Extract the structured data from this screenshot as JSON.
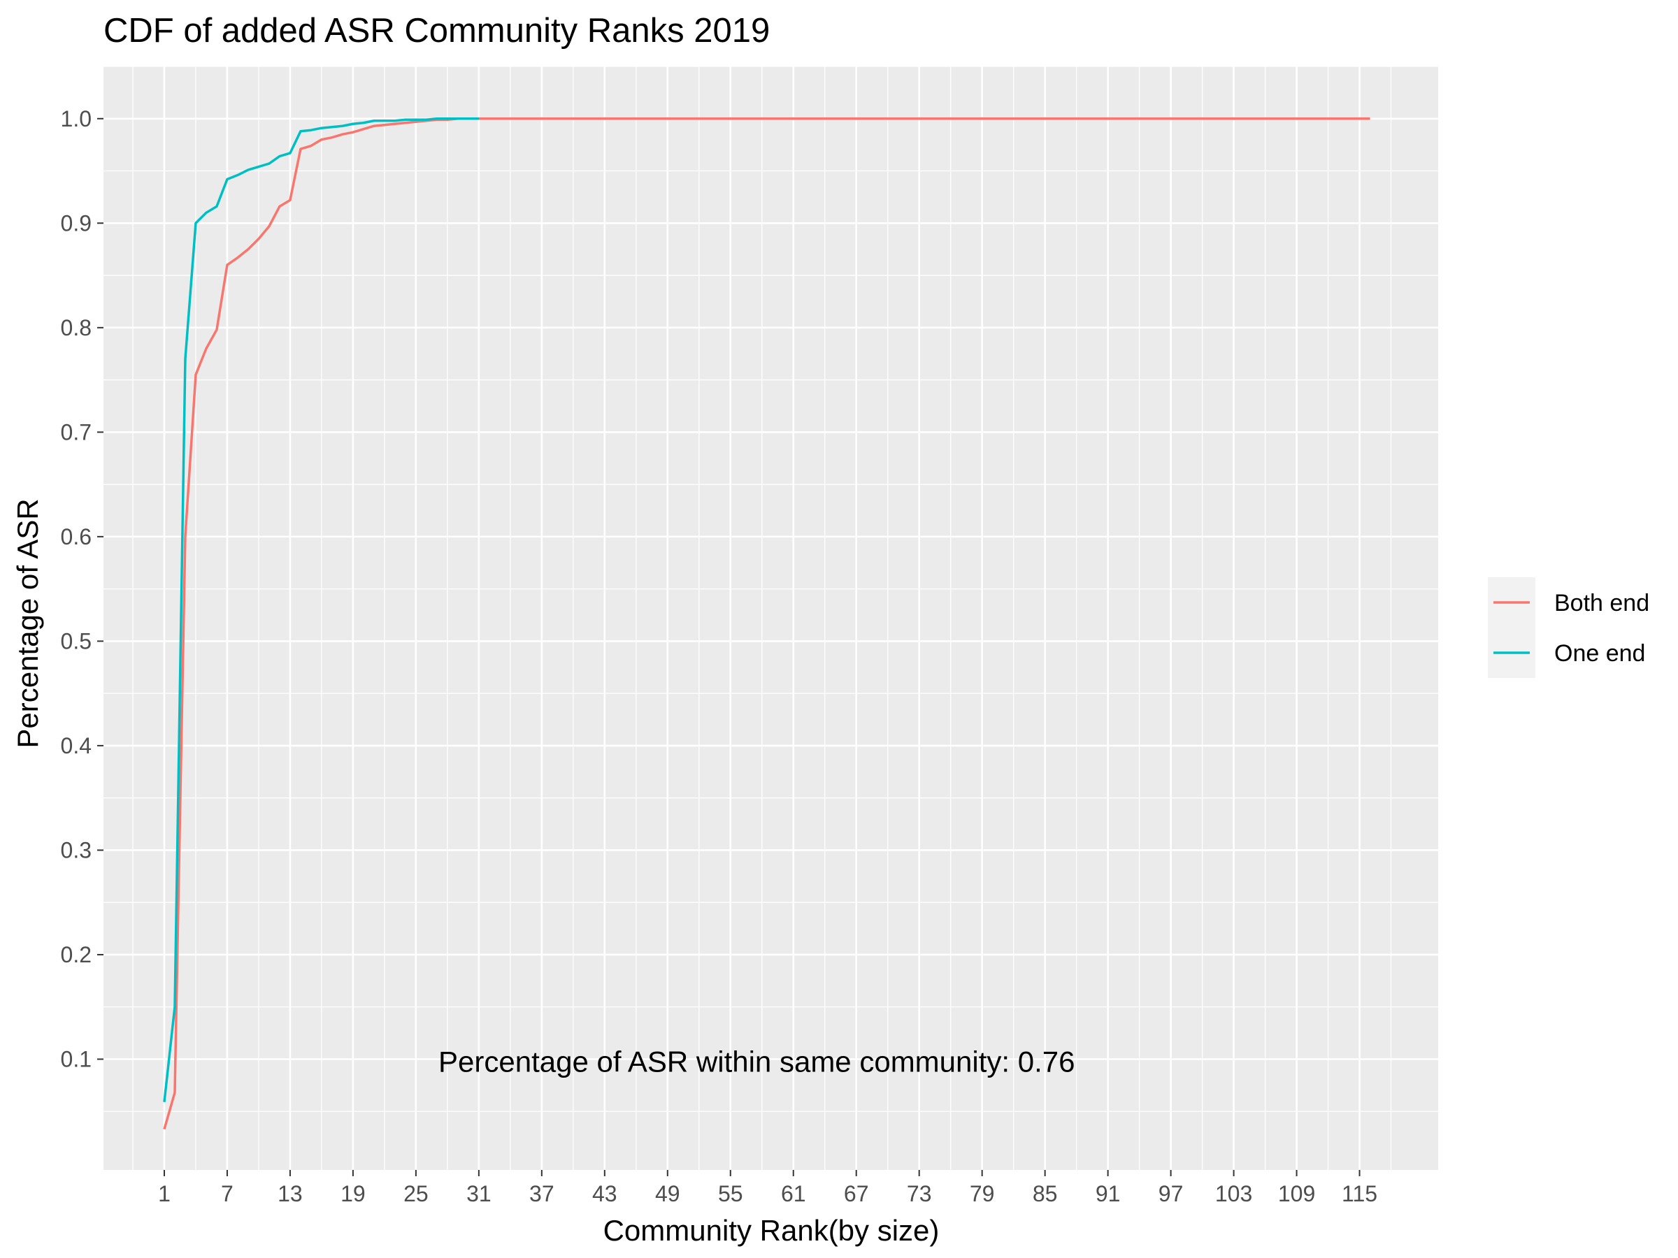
{
  "chart_data": {
    "type": "line",
    "title": "CDF of added ASR Community Ranks 2019",
    "xlabel": "Community Rank(by size)",
    "ylabel": "Percentage of ASR",
    "xlim": [
      -4.8,
      122.5
    ],
    "ylim": [
      -0.006,
      1.05
    ],
    "x_ticks": [
      1,
      7,
      13,
      19,
      25,
      31,
      37,
      43,
      49,
      55,
      61,
      67,
      73,
      79,
      85,
      91,
      97,
      103,
      109,
      115
    ],
    "y_ticks": [
      0.1,
      0.2,
      0.3,
      0.4,
      0.5,
      0.6,
      0.7,
      0.8,
      0.9,
      1.0
    ],
    "grid": true,
    "legend_position": "right",
    "annotation": "Percentage of ASR within same community: 0.76",
    "annotation_at": {
      "x": 57.5,
      "y": 0.088
    },
    "series": [
      {
        "name": "Both end",
        "color": "#F8766D",
        "x": [
          1,
          2,
          3,
          4,
          5,
          6,
          7,
          8,
          9,
          10,
          11,
          12,
          13,
          14,
          15,
          16,
          17,
          18,
          19,
          20,
          21,
          22,
          23,
          24,
          25,
          26,
          27,
          28,
          29,
          30,
          31,
          35,
          40,
          50,
          60,
          70,
          80,
          90,
          100,
          110,
          116
        ],
        "y": [
          0.033,
          0.068,
          0.6,
          0.755,
          0.78,
          0.798,
          0.86,
          0.867,
          0.875,
          0.885,
          0.897,
          0.916,
          0.922,
          0.971,
          0.974,
          0.98,
          0.982,
          0.985,
          0.987,
          0.99,
          0.993,
          0.994,
          0.995,
          0.996,
          0.997,
          0.998,
          0.999,
          0.999,
          1.0,
          1.0,
          1.0,
          1.0,
          1.0,
          1.0,
          1.0,
          1.0,
          1.0,
          1.0,
          1.0,
          1.0,
          1.0
        ]
      },
      {
        "name": "One end",
        "color": "#00BFC4",
        "x": [
          1,
          2,
          3,
          4,
          5,
          6,
          7,
          8,
          9,
          10,
          11,
          12,
          13,
          14,
          15,
          16,
          17,
          18,
          19,
          20,
          21,
          22,
          23,
          24,
          25,
          26,
          27,
          28,
          29,
          30,
          31
        ],
        "y": [
          0.059,
          0.15,
          0.77,
          0.9,
          0.91,
          0.916,
          0.942,
          0.946,
          0.951,
          0.954,
          0.957,
          0.964,
          0.967,
          0.988,
          0.989,
          0.991,
          0.992,
          0.993,
          0.995,
          0.996,
          0.998,
          0.998,
          0.998,
          0.999,
          0.999,
          0.999,
          1.0,
          1.0,
          1.0,
          1.0,
          1.0
        ]
      }
    ]
  }
}
